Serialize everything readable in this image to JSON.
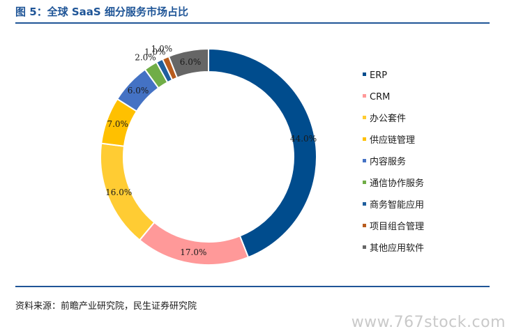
{
  "figure": {
    "title": "图 5：全球 SaaS 细分服务市场占比",
    "source": "资料来源：前瞻产业研究院，民生证券研究院",
    "watermark": "www.767stock.com"
  },
  "chart_data": {
    "type": "pie",
    "variant": "donut",
    "title": "",
    "legend_position": "right",
    "categories": [
      "ERP",
      "CRM",
      "办公套件",
      "供应链管理",
      "内容服务",
      "通信协作服务",
      "商务智能应用",
      "项目组合管理",
      "其他应用软件"
    ],
    "values": [
      44.0,
      17.0,
      16.0,
      7.0,
      6.0,
      2.0,
      1.0,
      1.0,
      6.0
    ],
    "labels": [
      "44.0%",
      "17.0%",
      "16.0%",
      "7.0%",
      "6.0%",
      "2.0%",
      "1.0%",
      "1.0%",
      "6.0%"
    ],
    "colors": [
      "#004c8d",
      "#ff9999",
      "#ffcc33",
      "#ffc000",
      "#4472c4",
      "#70ad47",
      "#1f5f9e",
      "#b85c1e",
      "#666666"
    ]
  }
}
